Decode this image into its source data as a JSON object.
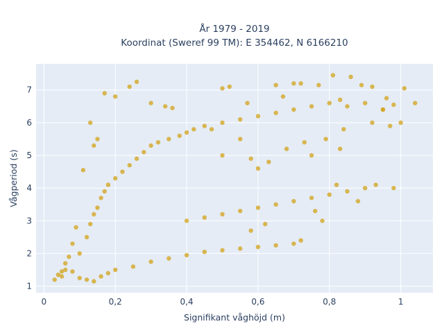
{
  "chart_data": {
    "type": "scatter",
    "title_line1": "År 1979 - 2019",
    "title_line2": "Koordinat (Sweref 99 TM): E 354462, N 6166210",
    "xlabel": "Signifikant våghöjd (m)",
    "ylabel": "Vågperiod (s)",
    "xlim": [
      -0.022,
      1.09
    ],
    "ylim": [
      0.8,
      7.8
    ],
    "x_ticks": [
      {
        "value": 0,
        "label": "0"
      },
      {
        "value": 0.2,
        "label": "0,2"
      },
      {
        "value": 0.4,
        "label": "0,4"
      },
      {
        "value": 0.6,
        "label": "0,6"
      },
      {
        "value": 0.8,
        "label": "0,8"
      },
      {
        "value": 1,
        "label": "1"
      }
    ],
    "y_ticks": [
      {
        "value": 1,
        "label": "1"
      },
      {
        "value": 2,
        "label": "2"
      },
      {
        "value": 3,
        "label": "3"
      },
      {
        "value": 4,
        "label": "4"
      },
      {
        "value": 5,
        "label": "5"
      },
      {
        "value": 6,
        "label": "6"
      },
      {
        "value": 7,
        "label": "7"
      }
    ],
    "grid": true,
    "plot_bg": "#e5ecf6",
    "marker_color": "#d4a520",
    "points": [
      [
        0.03,
        1.2
      ],
      [
        0.05,
        1.3
      ],
      [
        0.06,
        1.5
      ],
      [
        0.08,
        1.45
      ],
      [
        0.1,
        1.25
      ],
      [
        0.12,
        1.2
      ],
      [
        0.14,
        1.15
      ],
      [
        0.16,
        1.3
      ],
      [
        0.18,
        1.4
      ],
      [
        0.2,
        1.5
      ],
      [
        0.25,
        1.6
      ],
      [
        0.3,
        1.75
      ],
      [
        0.35,
        1.85
      ],
      [
        0.4,
        1.95
      ],
      [
        0.45,
        2.05
      ],
      [
        0.5,
        2.1
      ],
      [
        0.55,
        2.15
      ],
      [
        0.6,
        2.2
      ],
      [
        0.65,
        2.25
      ],
      [
        0.7,
        2.3
      ],
      [
        0.1,
        2.0
      ],
      [
        0.12,
        2.5
      ],
      [
        0.13,
        2.9
      ],
      [
        0.14,
        3.2
      ],
      [
        0.15,
        3.4
      ],
      [
        0.16,
        3.7
      ],
      [
        0.17,
        3.9
      ],
      [
        0.18,
        4.1
      ],
      [
        0.2,
        4.3
      ],
      [
        0.22,
        4.5
      ],
      [
        0.24,
        4.7
      ],
      [
        0.26,
        4.9
      ],
      [
        0.28,
        5.1
      ],
      [
        0.3,
        5.3
      ],
      [
        0.32,
        5.4
      ],
      [
        0.35,
        5.5
      ],
      [
        0.38,
        5.6
      ],
      [
        0.4,
        5.7
      ],
      [
        0.42,
        5.8
      ],
      [
        0.45,
        5.9
      ],
      [
        0.5,
        6.0
      ],
      [
        0.55,
        6.1
      ],
      [
        0.6,
        6.2
      ],
      [
        0.65,
        6.3
      ],
      [
        0.7,
        6.4
      ],
      [
        0.75,
        6.5
      ],
      [
        0.8,
        6.6
      ],
      [
        0.85,
        6.5
      ],
      [
        0.9,
        6.6
      ],
      [
        0.95,
        6.4
      ],
      [
        0.4,
        3.0
      ],
      [
        0.45,
        3.1
      ],
      [
        0.5,
        3.2
      ],
      [
        0.55,
        3.3
      ],
      [
        0.6,
        3.4
      ],
      [
        0.65,
        3.5
      ],
      [
        0.7,
        3.6
      ],
      [
        0.75,
        3.7
      ],
      [
        0.8,
        3.8
      ],
      [
        0.85,
        3.9
      ],
      [
        0.9,
        4.0
      ],
      [
        0.93,
        4.1
      ],
      [
        0.98,
        4.0
      ],
      [
        0.82,
        4.1
      ],
      [
        0.88,
        3.6
      ],
      [
        0.78,
        3.0
      ],
      [
        0.72,
        2.4
      ],
      [
        0.76,
        3.3
      ],
      [
        0.58,
        2.7
      ],
      [
        0.62,
        2.9
      ],
      [
        0.17,
        6.9
      ],
      [
        0.2,
        6.8
      ],
      [
        0.24,
        7.1
      ],
      [
        0.26,
        7.25
      ],
      [
        0.3,
        6.6
      ],
      [
        0.34,
        6.5
      ],
      [
        0.36,
        6.45
      ],
      [
        0.5,
        7.05
      ],
      [
        0.52,
        7.1
      ],
      [
        0.57,
        6.6
      ],
      [
        0.65,
        7.15
      ],
      [
        0.67,
        6.8
      ],
      [
        0.7,
        7.2
      ],
      [
        0.72,
        7.2
      ],
      [
        0.77,
        7.15
      ],
      [
        0.81,
        7.45
      ],
      [
        0.86,
        7.4
      ],
      [
        0.89,
        7.15
      ],
      [
        0.92,
        7.1
      ],
      [
        0.96,
        6.75
      ],
      [
        0.98,
        6.55
      ],
      [
        1.0,
        6.0
      ],
      [
        1.01,
        7.05
      ],
      [
        1.04,
        6.6
      ],
      [
        0.97,
        5.9
      ],
      [
        0.83,
        6.7
      ],
      [
        0.84,
        5.8
      ],
      [
        0.92,
        6.0
      ],
      [
        0.95,
        6.4
      ],
      [
        0.79,
        5.5
      ],
      [
        0.47,
        5.8
      ],
      [
        0.5,
        5.0
      ],
      [
        0.55,
        5.5
      ],
      [
        0.58,
        4.9
      ],
      [
        0.6,
        4.6
      ],
      [
        0.63,
        4.8
      ],
      [
        0.68,
        5.2
      ],
      [
        0.73,
        5.4
      ],
      [
        0.75,
        5.0
      ],
      [
        0.83,
        5.2
      ],
      [
        0.11,
        4.55
      ],
      [
        0.09,
        2.8
      ],
      [
        0.08,
        2.3
      ],
      [
        0.07,
        1.9
      ],
      [
        0.06,
        1.7
      ],
      [
        0.05,
        1.45
      ],
      [
        0.04,
        1.35
      ],
      [
        0.15,
        5.5
      ],
      [
        0.14,
        5.3
      ],
      [
        0.13,
        6.0
      ]
    ]
  }
}
